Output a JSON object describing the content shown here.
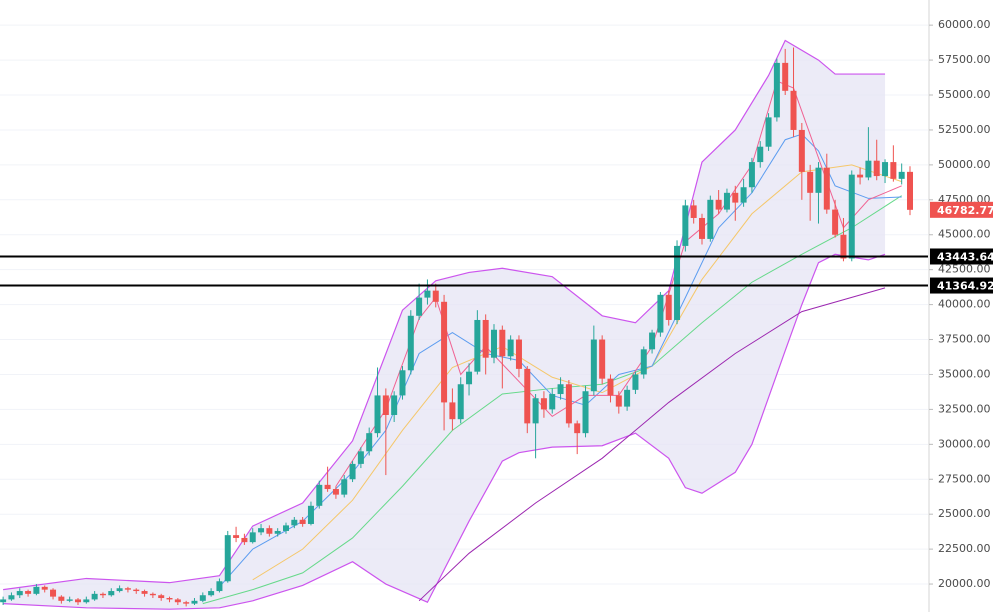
{
  "chart_data": {
    "type": "candlestick",
    "ylim": [
      18000,
      61800
    ],
    "yticks": [
      {
        "value": 20000,
        "label": "20000.00"
      },
      {
        "value": 22500,
        "label": "22500.00"
      },
      {
        "value": 25000,
        "label": "25000.00"
      },
      {
        "value": 27500,
        "label": "27500.00"
      },
      {
        "value": 30000,
        "label": "30000.00"
      },
      {
        "value": 32500,
        "label": "32500.00"
      },
      {
        "value": 35000,
        "label": "35000.00"
      },
      {
        "value": 37500,
        "label": "37500.00"
      },
      {
        "value": 40000,
        "label": "40000.00"
      },
      {
        "value": 42500,
        "label": "42500.00"
      },
      {
        "value": 45000,
        "label": "45000.00"
      },
      {
        "value": 47500,
        "label": "47500.00"
      },
      {
        "value": 50000,
        "label": "50000.00"
      },
      {
        "value": 52500,
        "label": "52500.00"
      },
      {
        "value": 55000,
        "label": "55000.00"
      },
      {
        "value": 57500,
        "label": "57500.00"
      },
      {
        "value": 60000,
        "label": "60000.00"
      }
    ],
    "grid": true,
    "up_color": "#26a69a",
    "down_color": "#ef5350",
    "candles": [
      [
        18700,
        19100,
        18500,
        18900
      ],
      [
        18900,
        19400,
        18800,
        19200
      ],
      [
        19200,
        19700,
        19000,
        19500
      ],
      [
        19500,
        19600,
        19100,
        19300
      ],
      [
        19300,
        20000,
        19200,
        19800
      ],
      [
        19800,
        19900,
        19400,
        19600
      ],
      [
        19600,
        19700,
        18900,
        19100
      ],
      [
        19100,
        19200,
        18600,
        18800
      ],
      [
        18800,
        19100,
        18700,
        18900
      ],
      [
        18900,
        19000,
        18500,
        18700
      ],
      [
        18700,
        19100,
        18600,
        18900
      ],
      [
        18900,
        19500,
        18800,
        19300
      ],
      [
        19300,
        19400,
        19000,
        19200
      ],
      [
        19200,
        19700,
        19100,
        19500
      ],
      [
        19500,
        19900,
        19400,
        19700
      ],
      [
        19700,
        19800,
        19400,
        19600
      ],
      [
        19600,
        19700,
        19300,
        19500
      ],
      [
        19500,
        19600,
        19100,
        19300
      ],
      [
        19300,
        19400,
        19000,
        19200
      ],
      [
        19200,
        19300,
        18800,
        19000
      ],
      [
        19000,
        19100,
        18700,
        18900
      ],
      [
        18900,
        19000,
        18500,
        18700
      ],
      [
        18700,
        18800,
        18400,
        18600
      ],
      [
        18600,
        19000,
        18500,
        18800
      ],
      [
        18800,
        19400,
        18700,
        19200
      ],
      [
        19200,
        19700,
        19100,
        19500
      ],
      [
        19500,
        20400,
        19400,
        20200
      ],
      [
        20200,
        23800,
        20100,
        23500
      ],
      [
        23500,
        24100,
        23000,
        23300
      ],
      [
        23300,
        23600,
        22800,
        23000
      ],
      [
        23000,
        24000,
        22900,
        23700
      ],
      [
        23700,
        24300,
        23500,
        24000
      ],
      [
        24000,
        24200,
        23400,
        23600
      ],
      [
        23600,
        24000,
        23400,
        23800
      ],
      [
        23800,
        24400,
        23600,
        24200
      ],
      [
        24200,
        24800,
        24000,
        24600
      ],
      [
        24600,
        24800,
        24100,
        24300
      ],
      [
        24300,
        25900,
        24200,
        25600
      ],
      [
        25600,
        27400,
        25400,
        27100
      ],
      [
        27100,
        28400,
        26600,
        26800
      ],
      [
        26800,
        27000,
        26100,
        26400
      ],
      [
        26400,
        27800,
        26200,
        27500
      ],
      [
        27500,
        28800,
        27300,
        28600
      ],
      [
        28600,
        29800,
        28300,
        29500
      ],
      [
        29500,
        31200,
        29200,
        30800
      ],
      [
        30800,
        35500,
        30500,
        33500
      ],
      [
        33500,
        34000,
        27800,
        32100
      ],
      [
        32100,
        33800,
        31600,
        33500
      ],
      [
        33500,
        35600,
        33200,
        35300
      ],
      [
        35300,
        39600,
        35000,
        39200
      ],
      [
        39200,
        41500,
        38900,
        40500
      ],
      [
        40500,
        41800,
        40000,
        41000
      ],
      [
        41000,
        41500,
        39800,
        40200
      ],
      [
        40200,
        40700,
        31000,
        33000
      ],
      [
        33000,
        34000,
        31000,
        31800
      ],
      [
        31800,
        34800,
        31500,
        34300
      ],
      [
        34300,
        35800,
        33500,
        35200
      ],
      [
        35200,
        39600,
        35000,
        38900
      ],
      [
        38900,
        39300,
        35000,
        36200
      ],
      [
        36200,
        38600,
        35800,
        38200
      ],
      [
        38200,
        38500,
        34000,
        36300
      ],
      [
        36300,
        37800,
        36000,
        37500
      ],
      [
        37500,
        37800,
        34800,
        35400
      ],
      [
        35400,
        35600,
        30800,
        31500
      ],
      [
        31500,
        33600,
        29000,
        33300
      ],
      [
        33300,
        33800,
        31900,
        32500
      ],
      [
        32500,
        34000,
        32200,
        33600
      ],
      [
        33600,
        34800,
        33200,
        34300
      ],
      [
        34300,
        34600,
        31200,
        31500
      ],
      [
        31500,
        31700,
        29300,
        30800
      ],
      [
        30800,
        34200,
        30500,
        33800
      ],
      [
        33800,
        38500,
        33500,
        37500
      ],
      [
        37500,
        37800,
        34300,
        34700
      ],
      [
        34700,
        35000,
        33000,
        33500
      ],
      [
        33500,
        33800,
        32200,
        32700
      ],
      [
        32700,
        34200,
        32400,
        33900
      ],
      [
        33900,
        35200,
        33600,
        35000
      ],
      [
        35000,
        37000,
        34700,
        36800
      ],
      [
        36800,
        38200,
        36500,
        38000
      ],
      [
        38000,
        40900,
        37700,
        40700
      ],
      [
        40700,
        41000,
        38500,
        38900
      ],
      [
        38900,
        44600,
        38600,
        44200
      ],
      [
        44200,
        47500,
        43800,
        47100
      ],
      [
        47100,
        47500,
        45800,
        46200
      ],
      [
        46200,
        46500,
        44300,
        44700
      ],
      [
        44700,
        47800,
        44500,
        47500
      ],
      [
        47500,
        48200,
        46500,
        46800
      ],
      [
        46800,
        48300,
        46600,
        48000
      ],
      [
        48000,
        48500,
        46000,
        47300
      ],
      [
        47300,
        49000,
        47000,
        48400
      ],
      [
        48400,
        50500,
        48000,
        50200
      ],
      [
        50200,
        51700,
        49800,
        51300
      ],
      [
        51300,
        53700,
        51000,
        53400
      ],
      [
        53400,
        57600,
        53100,
        57300
      ],
      [
        57300,
        58300,
        55000,
        55300
      ],
      [
        55300,
        58400,
        52000,
        52500
      ],
      [
        52500,
        53000,
        47500,
        49500
      ],
      [
        49500,
        50000,
        46000,
        48000
      ],
      [
        48000,
        50200,
        45800,
        49800
      ],
      [
        49800,
        50800,
        46500,
        46800
      ],
      [
        46800,
        47500,
        44800,
        45000
      ],
      [
        45000,
        46200,
        43100,
        43300
      ],
      [
        43300,
        49600,
        43100,
        49300
      ],
      [
        49300,
        49800,
        48600,
        49100
      ],
      [
        49100,
        52700,
        48900,
        50300
      ],
      [
        50300,
        51800,
        48900,
        49200
      ],
      [
        49200,
        50400,
        48700,
        50200
      ],
      [
        50200,
        51400,
        48800,
        49000
      ],
      [
        49000,
        50100,
        48600,
        49500
      ],
      [
        49500,
        49900,
        46400,
        46782.77
      ]
    ],
    "band": {
      "color": "#cc55ee",
      "fill": "#e6e4f4",
      "upper": {
        "x": [
          0,
          10,
          20,
          26,
          30,
          36,
          42,
          48,
          52,
          56,
          60,
          66,
          72,
          76,
          80,
          84,
          88,
          92,
          94,
          98,
          100,
          106
        ],
        "values": [
          19600,
          20400,
          20100,
          20600,
          24150,
          25800,
          30250,
          39600,
          41700,
          42300,
          42600,
          42000,
          39200,
          38700,
          41000,
          50200,
          52500,
          56400,
          58900,
          57500,
          56500,
          56500
        ]
      },
      "lower": {
        "x": [
          0,
          10,
          20,
          26,
          30,
          36,
          42,
          46,
          51,
          56,
          60,
          62,
          66,
          72,
          76,
          80,
          82,
          84,
          88,
          90,
          94,
          96,
          98,
          100,
          104,
          106
        ],
        "values": [
          18600,
          18300,
          18200,
          18300,
          18800,
          19900,
          21600,
          20000,
          18700,
          24500,
          28800,
          29400,
          29800,
          29900,
          30800,
          29000,
          26900,
          26500,
          28000,
          30000,
          36700,
          40000,
          43000,
          43600,
          43200,
          43600
        ]
      }
    },
    "lines": [
      {
        "color": "#9c27b0",
        "x": [
          50,
          56,
          64,
          72,
          80,
          88,
          96,
          106
        ],
        "values": [
          18800,
          22200,
          25800,
          29000,
          33000,
          36500,
          39500,
          41200
        ]
      },
      {
        "color": "#66d98a",
        "x": [
          24,
          30,
          36,
          42,
          48,
          54,
          60,
          66,
          72,
          78,
          84,
          90,
          96,
          102,
          108
        ],
        "values": [
          18600,
          19600,
          20800,
          23300,
          27000,
          31000,
          33600,
          34000,
          34300,
          35600,
          38700,
          41600,
          43600,
          45500,
          47800
        ]
      },
      {
        "color": "#f5c76a",
        "x": [
          30,
          36,
          42,
          48,
          54,
          60,
          66,
          72,
          78,
          84,
          90,
          96,
          102,
          108
        ],
        "values": [
          20300,
          22500,
          26000,
          31000,
          35500,
          37000,
          34800,
          33700,
          35600,
          41800,
          46500,
          49500,
          50000,
          48800
        ]
      },
      {
        "color": "#5b9cf0",
        "x": [
          26,
          30,
          36,
          42,
          46,
          50,
          54,
          58,
          62,
          66,
          70,
          74,
          78,
          82,
          86,
          90,
          94,
          96,
          98,
          100,
          104,
          108
        ],
        "values": [
          19800,
          22500,
          24500,
          28000,
          31000,
          36500,
          38000,
          36500,
          36000,
          33500,
          32800,
          35000,
          35600,
          40500,
          45500,
          48000,
          51800,
          52200,
          51000,
          48500,
          47600,
          47700
        ]
      },
      {
        "color": "#f06292",
        "x": [
          40,
          46,
          50,
          52,
          55,
          58,
          62,
          66,
          70,
          74,
          78,
          82,
          86,
          90,
          93,
          95,
          98,
          101,
          104,
          108
        ],
        "values": [
          27000,
          32500,
          39000,
          40500,
          35000,
          37000,
          34500,
          32000,
          33500,
          33500,
          37000,
          44500,
          46500,
          50000,
          56000,
          55500,
          50500,
          45500,
          47500,
          48500
        ]
      }
    ],
    "levels": [
      43443.64,
      41364.92
    ],
    "level_color": "#000000"
  }
}
